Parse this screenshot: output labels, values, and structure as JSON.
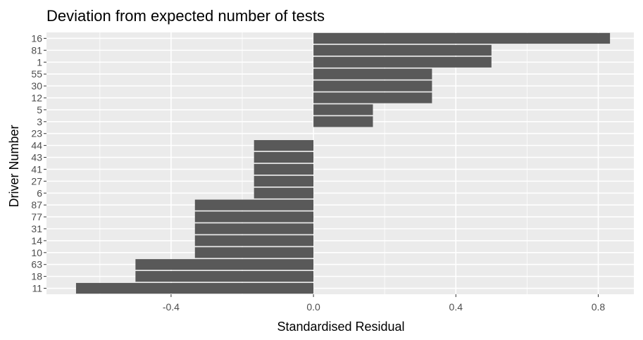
{
  "chart_data": {
    "type": "bar",
    "orientation": "horizontal",
    "title": "Deviation from expected number of tests",
    "xlabel": "Standardised Residual",
    "ylabel": "Driver Number",
    "categories": [
      "16",
      "81",
      "1",
      "55",
      "30",
      "12",
      "5",
      "3",
      "23",
      "44",
      "43",
      "41",
      "27",
      "6",
      "87",
      "77",
      "31",
      "14",
      "10",
      "63",
      "18",
      "11"
    ],
    "values": [
      0.833,
      0.5,
      0.5,
      0.333,
      0.333,
      0.333,
      0.167,
      0.167,
      0,
      -0.167,
      -0.167,
      -0.167,
      -0.167,
      -0.167,
      -0.333,
      -0.333,
      -0.333,
      -0.333,
      -0.333,
      -0.5,
      -0.5,
      -0.667
    ],
    "xlim": [
      -0.75,
      0.9
    ],
    "xticks": [
      -0.4,
      0.0,
      0.4,
      0.8
    ],
    "xtick_labels": [
      "-0.4",
      "0.0",
      "0.4",
      "0.8"
    ],
    "grid": true,
    "legend": "none",
    "colors": {
      "bar": "#595959",
      "panel": "#ebebeb",
      "grid": "#ffffff"
    }
  }
}
